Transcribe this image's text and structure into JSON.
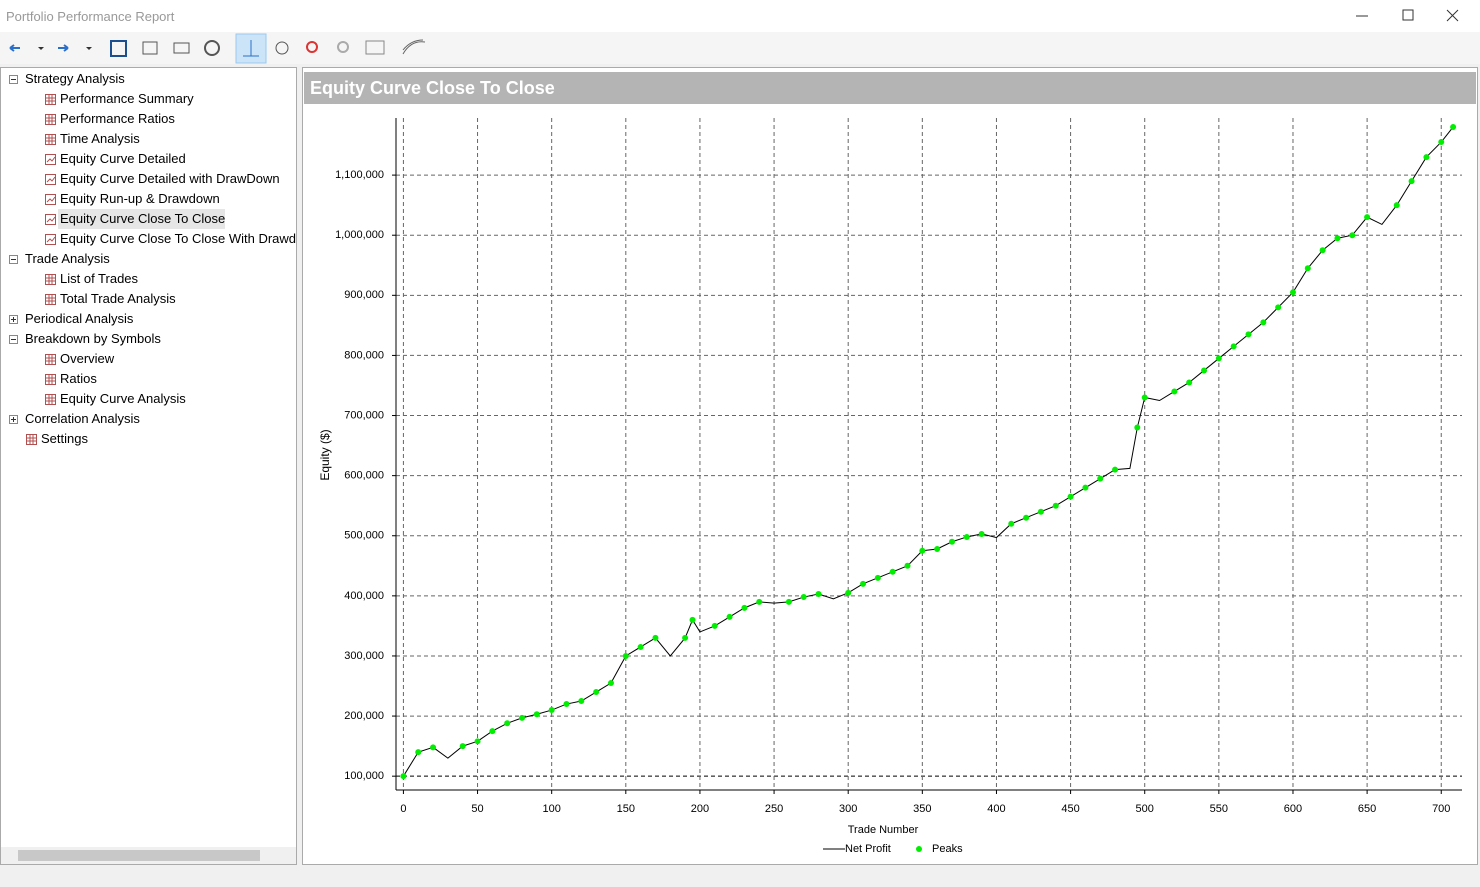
{
  "window": {
    "title": "Portfolio Performance Report"
  },
  "tree": [
    {
      "label": "Strategy Analysis",
      "expanded": true,
      "children": [
        {
          "label": "Performance Summary",
          "icon": "grid"
        },
        {
          "label": "Performance Ratios",
          "icon": "grid"
        },
        {
          "label": "Time Analysis",
          "icon": "grid"
        },
        {
          "label": "Equity Curve Detailed",
          "icon": "chart"
        },
        {
          "label": "Equity Curve Detailed with DrawDown",
          "icon": "chart"
        },
        {
          "label": "Equity Run-up & Drawdown",
          "icon": "chart"
        },
        {
          "label": "Equity Curve Close To Close",
          "icon": "chart",
          "selected": true
        },
        {
          "label": "Equity Curve Close To Close With Drawd",
          "icon": "chart"
        }
      ]
    },
    {
      "label": "Trade Analysis",
      "expanded": true,
      "children": [
        {
          "label": "List of Trades",
          "icon": "grid"
        },
        {
          "label": "Total Trade Analysis",
          "icon": "grid"
        }
      ]
    },
    {
      "label": "Periodical Analysis",
      "expanded": false,
      "children": []
    },
    {
      "label": "Breakdown by Symbols",
      "expanded": true,
      "children": [
        {
          "label": "Overview",
          "icon": "grid"
        },
        {
          "label": "Ratios",
          "icon": "grid"
        },
        {
          "label": "Equity Curve Analysis",
          "icon": "grid"
        }
      ]
    },
    {
      "label": "Correlation Analysis",
      "expanded": false,
      "children": []
    },
    {
      "label": "Settings",
      "icon": "grid"
    }
  ],
  "chart_data": {
    "type": "line",
    "title": "Equity Curve Close To Close",
    "x_label": "Trade Number",
    "y_label": "Equity ($)",
    "x": [
      0,
      10,
      20,
      30,
      40,
      50,
      60,
      70,
      80,
      90,
      100,
      110,
      120,
      130,
      140,
      150,
      160,
      170,
      180,
      190,
      195,
      200,
      210,
      220,
      230,
      240,
      250,
      260,
      270,
      280,
      290,
      300,
      310,
      320,
      330,
      340,
      350,
      360,
      370,
      380,
      390,
      400,
      410,
      420,
      430,
      440,
      450,
      460,
      470,
      480,
      490,
      495,
      500,
      510,
      520,
      530,
      540,
      550,
      560,
      570,
      580,
      590,
      600,
      610,
      620,
      630,
      640,
      650,
      660,
      670,
      680,
      690,
      700,
      708
    ],
    "series": [
      {
        "name": "Net Profit",
        "type": "line",
        "color": "#000000",
        "values": [
          100000,
          140000,
          148000,
          130000,
          150000,
          158000,
          175000,
          188000,
          197000,
          203000,
          210000,
          220000,
          225000,
          240000,
          255000,
          300000,
          315000,
          330000,
          300000,
          330000,
          360000,
          340000,
          350000,
          365000,
          380000,
          390000,
          388000,
          390000,
          398000,
          403000,
          395000,
          405000,
          420000,
          430000,
          440000,
          450000,
          475000,
          478000,
          490000,
          498000,
          503000,
          497000,
          520000,
          530000,
          540000,
          550000,
          565000,
          580000,
          595000,
          610000,
          612000,
          680000,
          730000,
          725000,
          740000,
          755000,
          775000,
          795000,
          815000,
          835000,
          855000,
          880000,
          905000,
          945000,
          975000,
          995000,
          1000000,
          1030000,
          1018000,
          1050000,
          1090000,
          1130000,
          1155000,
          1180000
        ]
      },
      {
        "name": "Peaks",
        "type": "scatter",
        "color": "#00ee00",
        "values": [
          100000,
          140000,
          148000,
          null,
          150000,
          158000,
          175000,
          188000,
          197000,
          203000,
          210000,
          220000,
          225000,
          240000,
          255000,
          300000,
          315000,
          330000,
          null,
          330000,
          360000,
          null,
          350000,
          365000,
          380000,
          390000,
          null,
          390000,
          398000,
          403000,
          null,
          405000,
          420000,
          430000,
          440000,
          450000,
          475000,
          478000,
          490000,
          498000,
          503000,
          null,
          520000,
          530000,
          540000,
          550000,
          565000,
          580000,
          595000,
          610000,
          null,
          680000,
          730000,
          null,
          740000,
          755000,
          775000,
          795000,
          815000,
          835000,
          855000,
          880000,
          905000,
          945000,
          975000,
          995000,
          1000000,
          1030000,
          null,
          1050000,
          1090000,
          1130000,
          1155000,
          1180000
        ]
      }
    ],
    "xlim": [
      -5,
      714
    ],
    "xticks": [
      0,
      50,
      100,
      150,
      200,
      250,
      300,
      350,
      400,
      450,
      500,
      550,
      600,
      650,
      700
    ],
    "ylim": [
      77000,
      1195000
    ],
    "yticks": [
      {
        "value": 100000,
        "label": "100,000"
      },
      {
        "value": 200000,
        "label": "200,000"
      },
      {
        "value": 300000,
        "label": "300,000"
      },
      {
        "value": 400000,
        "label": "400,000"
      },
      {
        "value": 500000,
        "label": "500,000"
      },
      {
        "value": 600000,
        "label": "600,000"
      },
      {
        "value": 700000,
        "label": "700,000"
      },
      {
        "value": 800000,
        "label": "800,000"
      },
      {
        "value": 900000,
        "label": "900,000"
      },
      {
        "value": 1000000,
        "label": "1,000,000"
      },
      {
        "value": 1100000,
        "label": "1,100,000"
      }
    ],
    "grid": true,
    "legend": "bottom"
  }
}
